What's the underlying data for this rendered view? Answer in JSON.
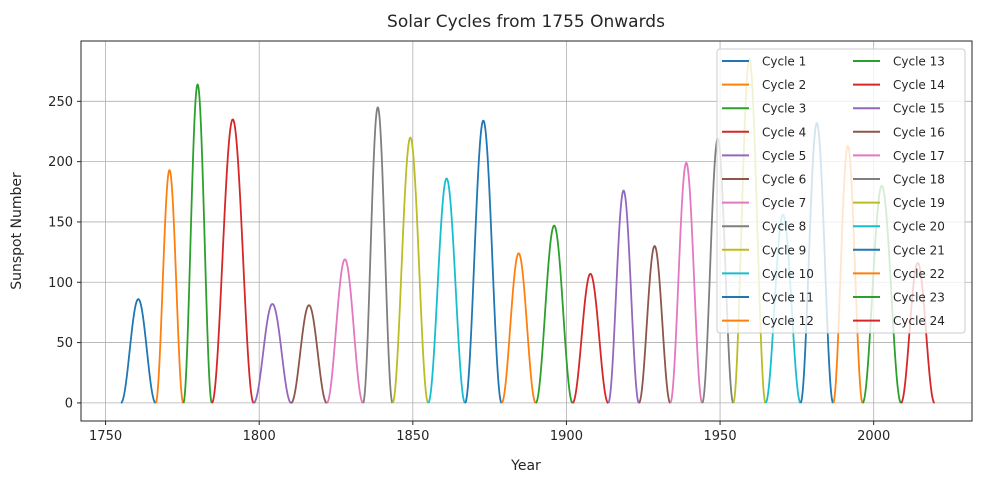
{
  "chart_data": {
    "type": "line",
    "title": "Solar Cycles from 1755 Onwards",
    "xlabel": "Year",
    "ylabel": "Sunspot Number",
    "xlim": [
      1742,
      2032
    ],
    "ylim": [
      -15,
      300
    ],
    "xticks": [
      1750,
      1800,
      1850,
      1900,
      1950,
      2000
    ],
    "yticks": [
      0,
      50,
      100,
      150,
      200,
      250
    ],
    "grid": true,
    "legend": {
      "position": "top-right",
      "columns": 2
    },
    "series": [
      {
        "name": "Cycle 1",
        "start": 1755.0,
        "end": 1766.3,
        "peak": 86,
        "color": "#1f77b4"
      },
      {
        "name": "Cycle 2",
        "start": 1766.3,
        "end": 1775.3,
        "peak": 193,
        "color": "#ff7f0e"
      },
      {
        "name": "Cycle 3",
        "start": 1775.3,
        "end": 1784.6,
        "peak": 264,
        "color": "#2ca02c"
      },
      {
        "name": "Cycle 4",
        "start": 1784.6,
        "end": 1798.2,
        "peak": 235,
        "color": "#d62728"
      },
      {
        "name": "Cycle 5",
        "start": 1798.2,
        "end": 1810.4,
        "peak": 82,
        "color": "#9467bd"
      },
      {
        "name": "Cycle 6",
        "start": 1810.4,
        "end": 1822.0,
        "peak": 81,
        "color": "#8c564b"
      },
      {
        "name": "Cycle 7",
        "start": 1822.0,
        "end": 1833.8,
        "peak": 119,
        "color": "#e377c2"
      },
      {
        "name": "Cycle 8",
        "start": 1833.8,
        "end": 1843.4,
        "peak": 245,
        "color": "#7f7f7f"
      },
      {
        "name": "Cycle 9",
        "start": 1843.4,
        "end": 1855.0,
        "peak": 220,
        "color": "#bcbd22"
      },
      {
        "name": "Cycle 10",
        "start": 1855.0,
        "end": 1867.0,
        "peak": 186,
        "color": "#17becf"
      },
      {
        "name": "Cycle 11",
        "start": 1867.0,
        "end": 1878.9,
        "peak": 234,
        "color": "#1f77b4"
      },
      {
        "name": "Cycle 12",
        "start": 1878.9,
        "end": 1890.0,
        "peak": 124,
        "color": "#ff7f0e"
      },
      {
        "name": "Cycle 13",
        "start": 1890.0,
        "end": 1902.0,
        "peak": 147,
        "color": "#2ca02c"
      },
      {
        "name": "Cycle 14",
        "start": 1902.0,
        "end": 1913.6,
        "peak": 107,
        "color": "#d62728"
      },
      {
        "name": "Cycle 15",
        "start": 1913.6,
        "end": 1923.6,
        "peak": 176,
        "color": "#9467bd"
      },
      {
        "name": "Cycle 16",
        "start": 1923.6,
        "end": 1933.8,
        "peak": 130,
        "color": "#8c564b"
      },
      {
        "name": "Cycle 17",
        "start": 1933.8,
        "end": 1944.2,
        "peak": 199,
        "color": "#e377c2"
      },
      {
        "name": "Cycle 18",
        "start": 1944.2,
        "end": 1954.3,
        "peak": 219,
        "color": "#7f7f7f"
      },
      {
        "name": "Cycle 19",
        "start": 1954.3,
        "end": 1964.8,
        "peak": 285,
        "color": "#bcbd22"
      },
      {
        "name": "Cycle 20",
        "start": 1964.8,
        "end": 1976.2,
        "peak": 156,
        "color": "#17becf"
      },
      {
        "name": "Cycle 21",
        "start": 1976.2,
        "end": 1986.8,
        "peak": 232,
        "color": "#1f77b4"
      },
      {
        "name": "Cycle 22",
        "start": 1986.8,
        "end": 1996.4,
        "peak": 213,
        "color": "#ff7f0e"
      },
      {
        "name": "Cycle 23",
        "start": 1996.4,
        "end": 2008.9,
        "peak": 180,
        "color": "#2ca02c"
      },
      {
        "name": "Cycle 24",
        "start": 2008.9,
        "end": 2019.8,
        "peak": 116,
        "color": "#d62728"
      }
    ]
  }
}
